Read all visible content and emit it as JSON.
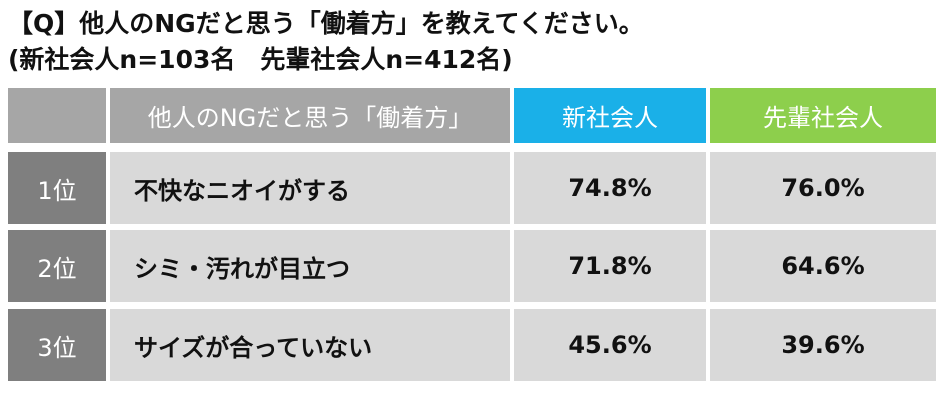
{
  "title": {
    "line1": "【Q】他人のNGだと思う「働着方」を教えてください。",
    "line2": "(新社会人n=103名　先輩社会人n=412名)"
  },
  "table": {
    "header": {
      "item": "他人のNGだと思う「働着方」",
      "columns": [
        "新社会人",
        "先輩社会人"
      ]
    },
    "rows": [
      {
        "rank": "1位",
        "item": "不快なニオイがする",
        "values": [
          "74.8%",
          "76.0%"
        ]
      },
      {
        "rank": "2位",
        "item": "シミ・汚れが目立つ",
        "values": [
          "71.8%",
          "64.6%"
        ]
      },
      {
        "rank": "3位",
        "item": "サイズが合っていない",
        "values": [
          "45.6%",
          "39.6%"
        ]
      }
    ]
  }
}
